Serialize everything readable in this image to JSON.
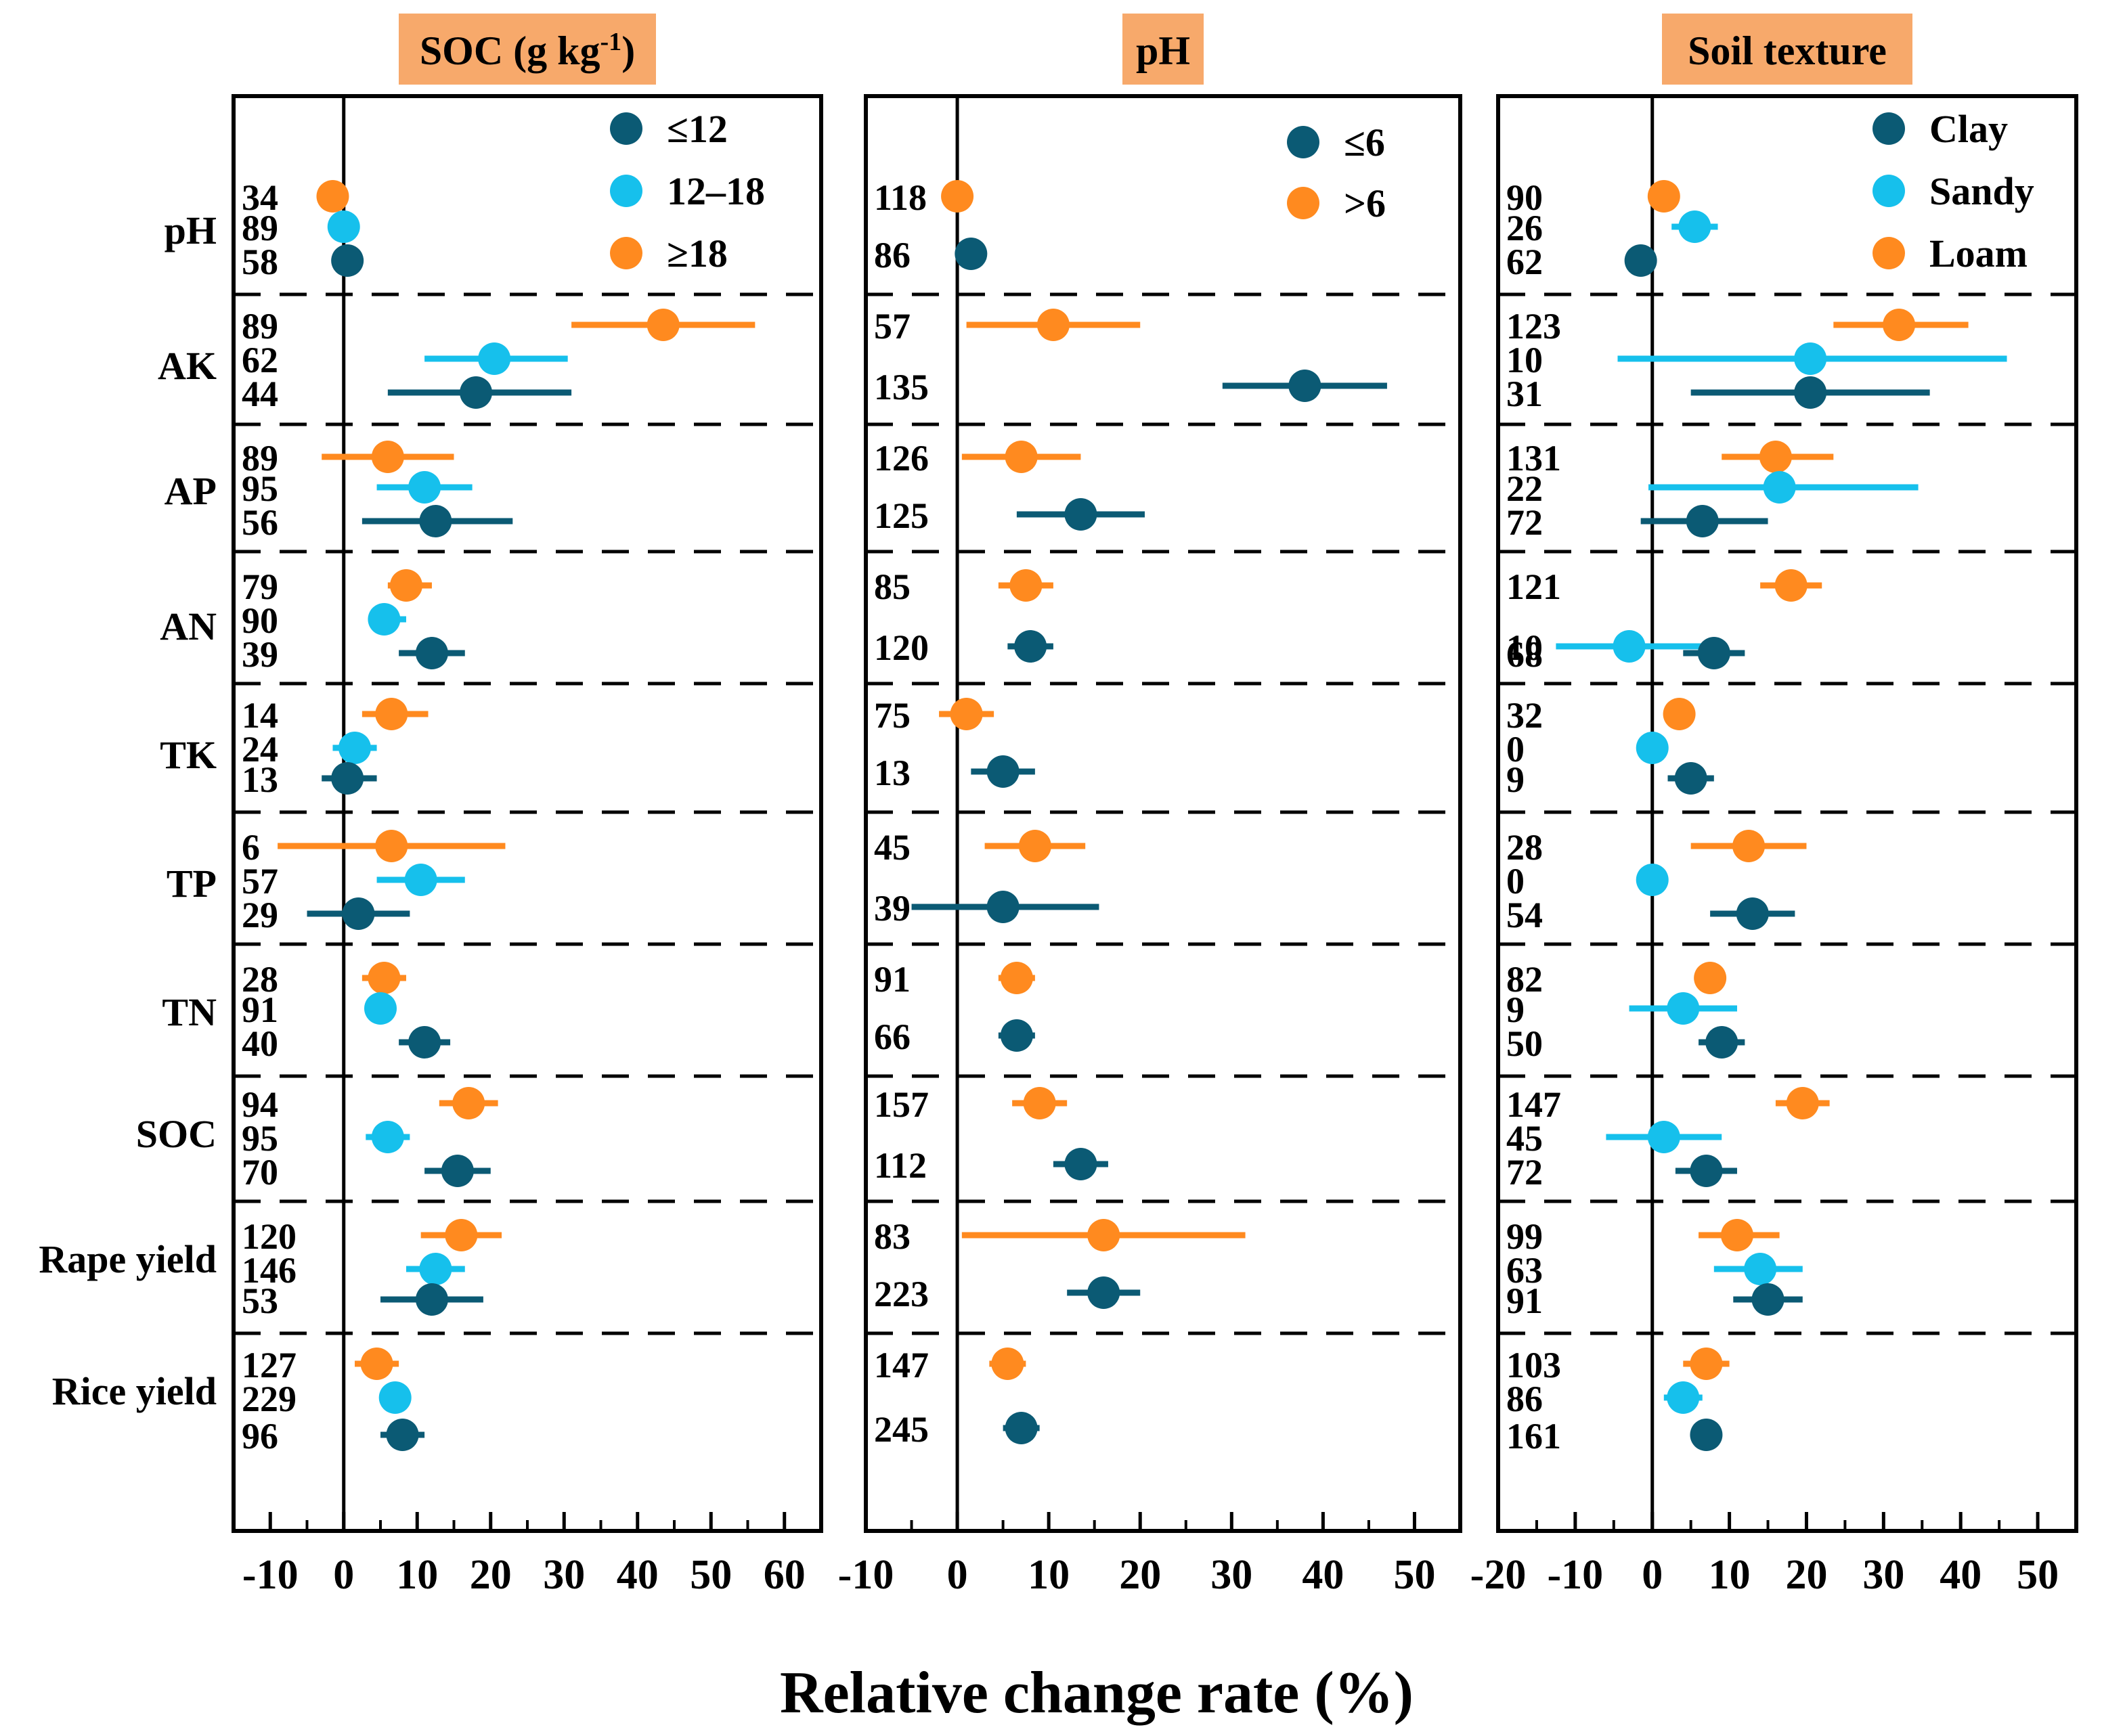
{
  "chart_data": {
    "type": "forest",
    "xlabel": "Relative change rate (%)",
    "categories": [
      "pH",
      "AK",
      "AP",
      "AN",
      "TK",
      "TP",
      "TN",
      "SOC",
      "Rape yield",
      "Rice yield"
    ],
    "colors": {
      "dark": "#0B5A74",
      "cyan": "#16C0EC",
      "orange": "#FF8A1F"
    },
    "panels": [
      {
        "title_main": "SOC (g kg",
        "title_sup": "-1",
        "title_end": ")",
        "xlim": [
          -15,
          65
        ],
        "ticks": [
          -10,
          0,
          10,
          20,
          30,
          40,
          50,
          60
        ],
        "series": [
          {
            "name": "≤12",
            "color": "dark"
          },
          {
            "name": "12–18",
            "color": "cyan"
          },
          {
            "name": "≥18",
            "color": "orange"
          }
        ],
        "groups": [
          {
            "category": "pH",
            "rows": [
              {
                "series": 2,
                "n": "34",
                "mean": -1.5,
                "lo": -3.5,
                "hi": 0.5
              },
              {
                "series": 1,
                "n": "89",
                "mean": 0,
                "lo": -1.5,
                "hi": 1.5
              },
              {
                "series": 0,
                "n": "58",
                "mean": 0.5,
                "lo": -1.5,
                "hi": 2.5
              }
            ]
          },
          {
            "category": "AK",
            "rows": [
              {
                "series": 2,
                "n": "89",
                "mean": 43.5,
                "lo": 31,
                "hi": 56
              },
              {
                "series": 1,
                "n": "62",
                "mean": 20.5,
                "lo": 11,
                "hi": 30.5
              },
              {
                "series": 0,
                "n": "44",
                "mean": 18,
                "lo": 6,
                "hi": 31
              }
            ]
          },
          {
            "category": "AP",
            "rows": [
              {
                "series": 2,
                "n": "89",
                "mean": 6,
                "lo": -3,
                "hi": 15
              },
              {
                "series": 1,
                "n": "95",
                "mean": 11,
                "lo": 4.5,
                "hi": 17.5
              },
              {
                "series": 0,
                "n": "56",
                "mean": 12.5,
                "lo": 2.5,
                "hi": 23
              }
            ]
          },
          {
            "category": "AN",
            "rows": [
              {
                "series": 2,
                "n": "79",
                "mean": 8.5,
                "lo": 6,
                "hi": 12
              },
              {
                "series": 1,
                "n": "90",
                "mean": 5.5,
                "lo": 3.5,
                "hi": 8.5
              },
              {
                "series": 0,
                "n": "39",
                "mean": 12,
                "lo": 7.5,
                "hi": 16.5
              }
            ]
          },
          {
            "category": "TK",
            "rows": [
              {
                "series": 2,
                "n": "14",
                "mean": 6.5,
                "lo": 2.5,
                "hi": 11.5
              },
              {
                "series": 1,
                "n": "24",
                "mean": 1.5,
                "lo": -1.5,
                "hi": 4.5
              },
              {
                "series": 0,
                "n": "13",
                "mean": 0.5,
                "lo": -3,
                "hi": 4.5
              }
            ]
          },
          {
            "category": "TP",
            "rows": [
              {
                "series": 2,
                "n": "6",
                "mean": 6.5,
                "lo": -9,
                "hi": 22
              },
              {
                "series": 1,
                "n": "57",
                "mean": 10.5,
                "lo": 4.5,
                "hi": 16.5
              },
              {
                "series": 0,
                "n": "29",
                "mean": 2,
                "lo": -5,
                "hi": 9
              }
            ]
          },
          {
            "category": "TN",
            "rows": [
              {
                "series": 2,
                "n": "28",
                "mean": 5.5,
                "lo": 2.5,
                "hi": 8.5
              },
              {
                "series": 1,
                "n": "91",
                "mean": 5,
                "lo": 3,
                "hi": 7
              },
              {
                "series": 0,
                "n": "40",
                "mean": 11,
                "lo": 7.5,
                "hi": 14.5
              }
            ]
          },
          {
            "category": "SOC",
            "rows": [
              {
                "series": 2,
                "n": "94",
                "mean": 17,
                "lo": 13,
                "hi": 21
              },
              {
                "series": 1,
                "n": "95",
                "mean": 6,
                "lo": 3,
                "hi": 9
              },
              {
                "series": 0,
                "n": "70",
                "mean": 15.5,
                "lo": 11,
                "hi": 20
              }
            ]
          },
          {
            "category": "Rape yield",
            "rows": [
              {
                "series": 2,
                "n": "120",
                "mean": 16,
                "lo": 10.5,
                "hi": 21.5
              },
              {
                "series": 1,
                "n": "146",
                "mean": 12.5,
                "lo": 8.5,
                "hi": 16.5
              },
              {
                "series": 0,
                "n": "53",
                "mean": 12,
                "lo": 5,
                "hi": 19
              }
            ]
          },
          {
            "category": "Rice yield",
            "rows": [
              {
                "series": 2,
                "n": "127",
                "mean": 4.5,
                "lo": 1.5,
                "hi": 7.5
              },
              {
                "series": 1,
                "n": "229",
                "mean": 7,
                "lo": 5,
                "hi": 9
              },
              {
                "series": 0,
                "n": "96",
                "mean": 8,
                "lo": 5,
                "hi": 11
              }
            ]
          }
        ]
      },
      {
        "title_main": "pH",
        "xlim": [
          -10,
          55
        ],
        "ticks": [
          -10,
          0,
          10,
          20,
          30,
          40,
          50
        ],
        "series": [
          {
            "name": "≤6",
            "color": "dark"
          },
          {
            "name": ">6",
            "color": "orange"
          }
        ],
        "groups": [
          {
            "category": "pH",
            "rows": [
              {
                "series": 1,
                "n": "118",
                "mean": 0,
                "lo": -1.5,
                "hi": 1.5
              },
              {
                "series": 0,
                "n": "86",
                "mean": 1.5,
                "lo": 0,
                "hi": 3
              }
            ]
          },
          {
            "category": "AK",
            "rows": [
              {
                "series": 1,
                "n": "57",
                "mean": 10.5,
                "lo": 1,
                "hi": 20
              },
              {
                "series": 0,
                "n": "135",
                "mean": 38,
                "lo": 29,
                "hi": 47
              }
            ]
          },
          {
            "category": "AP",
            "rows": [
              {
                "series": 1,
                "n": "126",
                "mean": 7,
                "lo": 0.5,
                "hi": 13.5
              },
              {
                "series": 0,
                "n": "125",
                "mean": 13.5,
                "lo": 6.5,
                "hi": 20.5
              }
            ]
          },
          {
            "category": "AN",
            "rows": [
              {
                "series": 1,
                "n": "85",
                "mean": 7.5,
                "lo": 4.5,
                "hi": 10.5
              },
              {
                "series": 0,
                "n": "120",
                "mean": 8,
                "lo": 5.5,
                "hi": 10.5
              }
            ]
          },
          {
            "category": "TK",
            "rows": [
              {
                "series": 1,
                "n": "75",
                "mean": 1,
                "lo": -2,
                "hi": 4
              },
              {
                "series": 0,
                "n": "13",
                "mean": 5,
                "lo": 1.5,
                "hi": 8.5
              }
            ]
          },
          {
            "category": "TP",
            "rows": [
              {
                "series": 1,
                "n": "45",
                "mean": 8.5,
                "lo": 3,
                "hi": 14
              },
              {
                "series": 0,
                "n": "39",
                "mean": 5,
                "lo": -5,
                "hi": 15.5
              }
            ]
          },
          {
            "category": "TN",
            "rows": [
              {
                "series": 1,
                "n": "91",
                "mean": 6.5,
                "lo": 4.5,
                "hi": 8.5
              },
              {
                "series": 0,
                "n": "66",
                "mean": 6.5,
                "lo": 4.5,
                "hi": 8.5
              }
            ]
          },
          {
            "category": "SOC",
            "rows": [
              {
                "series": 1,
                "n": "157",
                "mean": 9,
                "lo": 6,
                "hi": 12
              },
              {
                "series": 0,
                "n": "112",
                "mean": 13.5,
                "lo": 10.5,
                "hi": 16.5
              }
            ]
          },
          {
            "category": "Rape yield",
            "rows": [
              {
                "series": 1,
                "n": "83",
                "mean": 16,
                "lo": 0.5,
                "hi": 31.5
              },
              {
                "series": 0,
                "n": "223",
                "mean": 16,
                "lo": 12,
                "hi": 20
              }
            ]
          },
          {
            "category": "Rice yield",
            "rows": [
              {
                "series": 1,
                "n": "147",
                "mean": 5.5,
                "lo": 3.5,
                "hi": 7.5
              },
              {
                "series": 0,
                "n": "245",
                "mean": 7,
                "lo": 5,
                "hi": 9
              }
            ]
          }
        ]
      },
      {
        "title_main": "Soil texture",
        "xlim": [
          -20,
          55
        ],
        "ticks": [
          -20,
          -10,
          0,
          10,
          20,
          30,
          40,
          50
        ],
        "series": [
          {
            "name": "Clay",
            "color": "dark"
          },
          {
            "name": "Sandy",
            "color": "cyan"
          },
          {
            "name": "Loam",
            "color": "orange"
          }
        ],
        "groups": [
          {
            "category": "pH",
            "rows": [
              {
                "series": 2,
                "n": "90",
                "mean": 1.5,
                "lo": -0.5,
                "hi": 3.5
              },
              {
                "series": 1,
                "n": "26",
                "mean": 5.5,
                "lo": 2.5,
                "hi": 8.5
              },
              {
                "series": 0,
                "n": "62",
                "mean": -1.5,
                "lo": -3,
                "hi": 0
              }
            ]
          },
          {
            "category": "AK",
            "rows": [
              {
                "series": 2,
                "n": "123",
                "mean": 32,
                "lo": 23.5,
                "hi": 41
              },
              {
                "series": 1,
                "n": "10",
                "mean": 20.5,
                "lo": -4.5,
                "hi": 46
              },
              {
                "series": 0,
                "n": "31",
                "mean": 20.5,
                "lo": 5,
                "hi": 36
              }
            ]
          },
          {
            "category": "AP",
            "rows": [
              {
                "series": 2,
                "n": "131",
                "mean": 16,
                "lo": 9,
                "hi": 23.5
              },
              {
                "series": 1,
                "n": "22",
                "mean": 16.5,
                "lo": -0.5,
                "hi": 34.5
              },
              {
                "series": 0,
                "n": "72",
                "mean": 6.5,
                "lo": -1.5,
                "hi": 15
              }
            ]
          },
          {
            "category": "AN",
            "rows": [
              {
                "series": 2,
                "n": "121",
                "mean": 18,
                "lo": 14,
                "hi": 22
              },
              {
                "series": 1,
                "n": "10",
                "mean": -3,
                "lo": -12.5,
                "hi": 7
              }
            ]
          },
          {
            "category": "AN_dark",
            "rows": []
          },
          {
            "category": "TK",
            "rows": [
              {
                "series": 2,
                "n": "32",
                "mean": 3.5,
                "lo": 1.5,
                "hi": 5.5
              },
              {
                "series": 1,
                "n": "0",
                "mean": 0,
                "lo": 0,
                "hi": 0
              },
              {
                "series": 0,
                "n": "9",
                "mean": 5,
                "lo": 2,
                "hi": 8
              }
            ]
          },
          {
            "category": "TP",
            "rows": [
              {
                "series": 2,
                "n": "28",
                "mean": 12.5,
                "lo": 5,
                "hi": 20
              },
              {
                "series": 1,
                "n": "0",
                "mean": 0,
                "lo": 0,
                "hi": 0
              },
              {
                "series": 0,
                "n": "54",
                "mean": 13,
                "lo": 7.5,
                "hi": 18.5
              }
            ]
          },
          {
            "category": "TN",
            "rows": [
              {
                "series": 2,
                "n": "82",
                "mean": 7.5,
                "lo": 5.5,
                "hi": 9.5
              },
              {
                "series": 1,
                "n": "9",
                "mean": 4,
                "lo": -3,
                "hi": 11
              },
              {
                "series": 0,
                "n": "50",
                "mean": 9,
                "lo": 6,
                "hi": 12
              }
            ]
          },
          {
            "category": "SOC",
            "rows": [
              {
                "series": 2,
                "n": "147",
                "mean": 19.5,
                "lo": 16,
                "hi": 23
              },
              {
                "series": 1,
                "n": "45",
                "mean": 1.5,
                "lo": -6,
                "hi": 9
              },
              {
                "series": 0,
                "n": "72",
                "mean": 7,
                "lo": 3,
                "hi": 11
              }
            ]
          },
          {
            "category": "Rape yield",
            "rows": [
              {
                "series": 2,
                "n": "99",
                "mean": 11,
                "lo": 6,
                "hi": 16.5
              },
              {
                "series": 1,
                "n": "63",
                "mean": 14,
                "lo": 8,
                "hi": 19.5
              },
              {
                "series": 0,
                "n": "91",
                "mean": 15,
                "lo": 10.5,
                "hi": 19.5
              }
            ]
          },
          {
            "category": "Rice yield",
            "rows": [
              {
                "series": 2,
                "n": "103",
                "mean": 7,
                "lo": 4,
                "hi": 10
              },
              {
                "series": 1,
                "n": "86",
                "mean": 4,
                "lo": 1.5,
                "hi": 6.5
              },
              {
                "series": 0,
                "n": "161",
                "mean": 7,
                "lo": 5,
                "hi": 9
              }
            ]
          }
        ]
      }
    ]
  }
}
